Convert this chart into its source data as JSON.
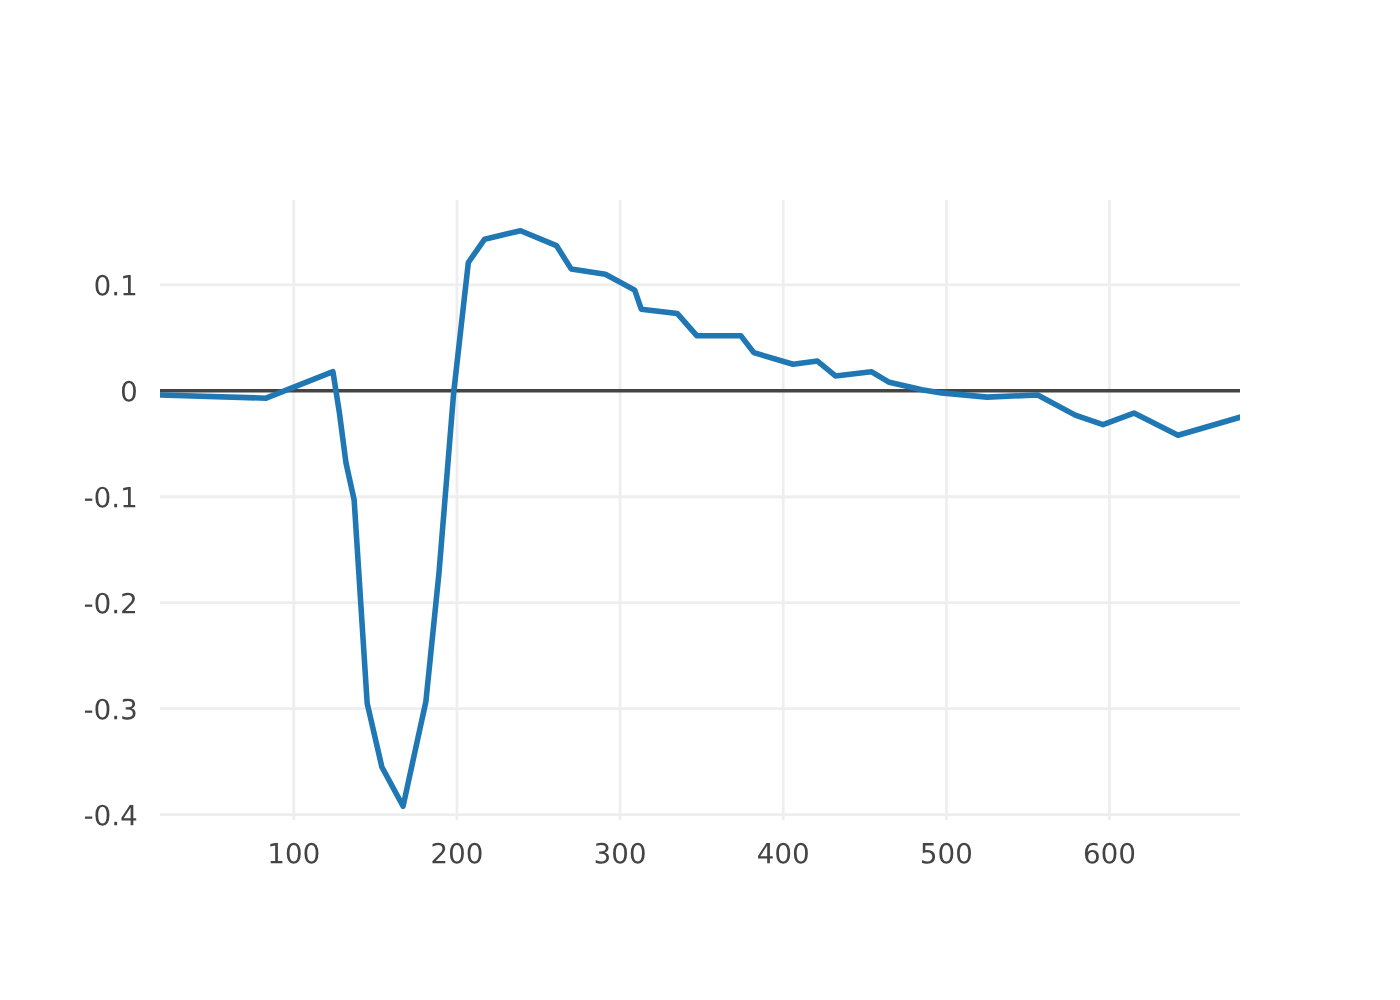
{
  "chart_data": {
    "type": "line",
    "x": [
      18,
      83,
      124,
      128,
      132,
      137,
      145,
      154,
      167,
      181,
      189,
      198,
      207,
      217,
      239,
      261,
      270,
      291,
      309,
      313,
      335,
      347,
      374,
      382,
      406,
      421,
      432,
      454,
      465,
      485,
      497,
      525,
      556,
      579,
      596,
      615,
      642,
      680
    ],
    "series": [
      {
        "color": "#1f77b4",
        "values": [
          -0.004,
          -0.007,
          0.018,
          -0.021,
          -0.068,
          -0.103,
          -0.295,
          -0.355,
          -0.392,
          -0.293,
          -0.172,
          -0.002,
          0.121,
          0.143,
          0.151,
          0.137,
          0.115,
          0.11,
          0.095,
          0.077,
          0.073,
          0.052,
          0.052,
          0.036,
          0.025,
          0.028,
          0.014,
          0.018,
          0.008,
          0.001,
          -0.002,
          -0.006,
          -0.004,
          -0.023,
          -0.032,
          -0.021,
          -0.042,
          -0.025
        ]
      }
    ],
    "xlim": [
      18,
      680
    ],
    "ylim": [
      -0.405,
      0.18
    ],
    "xticks": [
      100,
      200,
      300,
      400,
      500,
      600
    ],
    "yticks": [
      -0.4,
      -0.3,
      -0.2,
      -0.1,
      0,
      0.1
    ],
    "ref_lines": [
      {
        "axis": "y",
        "value": 0,
        "color": "#444444"
      }
    ],
    "grid": true,
    "legend": false,
    "marker": "none",
    "line_style": "solid"
  }
}
